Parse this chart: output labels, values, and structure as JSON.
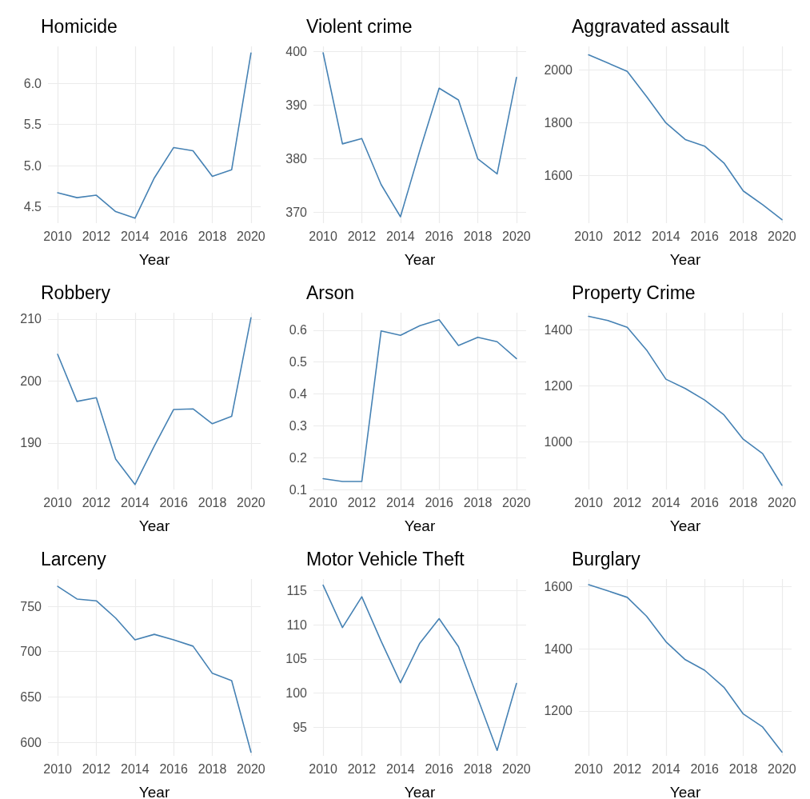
{
  "chart_data": [
    {
      "type": "line",
      "title": "Homicide",
      "xlabel": "Year",
      "x": [
        2010,
        2011,
        2012,
        2013,
        2014,
        2015,
        2016,
        2017,
        2018,
        2019,
        2020
      ],
      "values": [
        4.67,
        4.61,
        4.64,
        4.44,
        4.36,
        4.85,
        5.22,
        5.18,
        4.87,
        4.95,
        6.37
      ],
      "color": "#4682b4",
      "xlim": [
        2009.5,
        2020.5
      ],
      "xticks": [
        2010,
        2012,
        2014,
        2016,
        2018,
        2020
      ],
      "ylim": [
        4.3,
        6.45
      ],
      "yticks": [
        4.5,
        {
          "value": 5,
          "label": "5.0"
        },
        5.5,
        {
          "value": 6,
          "label": "6.0"
        }
      ],
      "grid": true,
      "marker": "none"
    },
    {
      "type": "line",
      "title": "Violent crime",
      "xlabel": "Year",
      "x": [
        2010,
        2011,
        2012,
        2013,
        2014,
        2015,
        2016,
        2017,
        2018,
        2019,
        2020
      ],
      "values": [
        399.8,
        382.8,
        383.8,
        375.2,
        369.2,
        381.5,
        393.2,
        391,
        380,
        377.2,
        395.2
      ],
      "color": "#4682b4",
      "xlim": [
        2009.5,
        2020.5
      ],
      "xticks": [
        2010,
        2012,
        2014,
        2016,
        2018,
        2020
      ],
      "ylim": [
        368,
        401
      ],
      "yticks": [
        370,
        380,
        390,
        400
      ],
      "grid": true,
      "marker": "none"
    },
    {
      "type": "line",
      "title": "Aggravated assault",
      "xlabel": "Year",
      "x": [
        2010,
        2011,
        2012,
        2013,
        2014,
        2015,
        2016,
        2017,
        2018,
        2019,
        2020
      ],
      "values": [
        2058,
        2027,
        1995,
        1900,
        1800,
        1737,
        1712,
        1648,
        1542,
        1490,
        1433
      ],
      "color": "#4682b4",
      "xlim": [
        2009.5,
        2020.5
      ],
      "xticks": [
        2010,
        2012,
        2014,
        2016,
        2018,
        2020
      ],
      "ylim": [
        1420,
        2090
      ],
      "yticks": [
        1600,
        1800,
        2000
      ],
      "grid": true,
      "marker": "none"
    },
    {
      "type": "line",
      "title": "Robbery",
      "xlabel": "Year",
      "x": [
        2010,
        2011,
        2012,
        2013,
        2014,
        2015,
        2016,
        2017,
        2018,
        2019,
        2020
      ],
      "values": [
        204.3,
        196.7,
        197.3,
        187.4,
        183.3,
        189.5,
        195.4,
        195.5,
        193.1,
        194.3,
        210.2
      ],
      "color": "#4682b4",
      "xlim": [
        2009.5,
        2020.5
      ],
      "xticks": [
        2010,
        2012,
        2014,
        2016,
        2018,
        2020
      ],
      "ylim": [
        182.5,
        211
      ],
      "yticks": [
        190,
        200,
        210
      ],
      "grid": true,
      "marker": "none"
    },
    {
      "type": "line",
      "title": "Arson",
      "xlabel": "Year",
      "x": [
        2010,
        2011,
        2012,
        2013,
        2014,
        2015,
        2016,
        2017,
        2018,
        2019,
        2020
      ],
      "values": [
        0.134,
        0.125,
        0.125,
        0.598,
        0.584,
        0.614,
        0.633,
        0.552,
        0.578,
        0.564,
        0.511
      ],
      "color": "#4682b4",
      "xlim": [
        2009.5,
        2020.5
      ],
      "xticks": [
        2010,
        2012,
        2014,
        2016,
        2018,
        2020
      ],
      "ylim": [
        0.1,
        0.655
      ],
      "yticks": [
        0.1,
        0.2,
        0.3,
        0.4,
        0.5,
        0.6
      ],
      "grid": true,
      "marker": "none"
    },
    {
      "type": "line",
      "title": "Property Crime",
      "xlabel": "Year",
      "x": [
        2010,
        2011,
        2012,
        2013,
        2014,
        2015,
        2016,
        2017,
        2018,
        2019,
        2020
      ],
      "values": [
        1447,
        1432,
        1408,
        1327,
        1223,
        1190,
        1149,
        1096,
        1009,
        958,
        845
      ],
      "color": "#4682b4",
      "xlim": [
        2009.5,
        2020.5
      ],
      "xticks": [
        2010,
        2012,
        2014,
        2016,
        2018,
        2020
      ],
      "ylim": [
        830,
        1460
      ],
      "yticks": [
        1000,
        1200,
        1400
      ],
      "grid": true,
      "marker": "none"
    },
    {
      "type": "line",
      "title": "Larceny",
      "xlabel": "Year",
      "x": [
        2010,
        2011,
        2012,
        2013,
        2014,
        2015,
        2016,
        2017,
        2018,
        2019,
        2020
      ],
      "values": [
        772,
        758,
        756,
        737,
        713,
        719,
        713,
        706,
        676,
        668,
        589
      ],
      "color": "#4682b4",
      "xlim": [
        2009.5,
        2020.5
      ],
      "xticks": [
        2010,
        2012,
        2014,
        2016,
        2018,
        2020
      ],
      "ylim": [
        585,
        780
      ],
      "yticks": [
        600,
        650,
        700,
        750
      ],
      "grid": true,
      "marker": "none"
    },
    {
      "type": "line",
      "title": "Motor Vehicle Theft",
      "xlabel": "Year",
      "x": [
        2010,
        2011,
        2012,
        2013,
        2014,
        2015,
        2016,
        2017,
        2018,
        2019,
        2020
      ],
      "values": [
        115.8,
        109.6,
        114.1,
        107.6,
        101.5,
        107.3,
        110.9,
        106.8,
        99.2,
        91.6,
        101.4
      ],
      "color": "#4682b4",
      "xlim": [
        2009.5,
        2020.5
      ],
      "xticks": [
        2010,
        2012,
        2014,
        2016,
        2018,
        2020
      ],
      "ylim": [
        90.8,
        116.7
      ],
      "yticks": [
        95,
        100,
        105,
        110,
        115
      ],
      "grid": true,
      "marker": "none"
    },
    {
      "type": "line",
      "title": "Burglary",
      "xlabel": "Year",
      "x": [
        2010,
        2011,
        2012,
        2013,
        2014,
        2015,
        2016,
        2017,
        2018,
        2019,
        2020
      ],
      "values": [
        1607,
        1587,
        1566,
        1505,
        1423,
        1365,
        1331,
        1276,
        1190,
        1148,
        1067
      ],
      "color": "#4682b4",
      "xlim": [
        2009.5,
        2020.5
      ],
      "xticks": [
        2010,
        2012,
        2014,
        2016,
        2018,
        2020
      ],
      "ylim": [
        1055,
        1625
      ],
      "yticks": [
        1200,
        1400,
        1600
      ],
      "grid": true,
      "marker": "none"
    }
  ]
}
